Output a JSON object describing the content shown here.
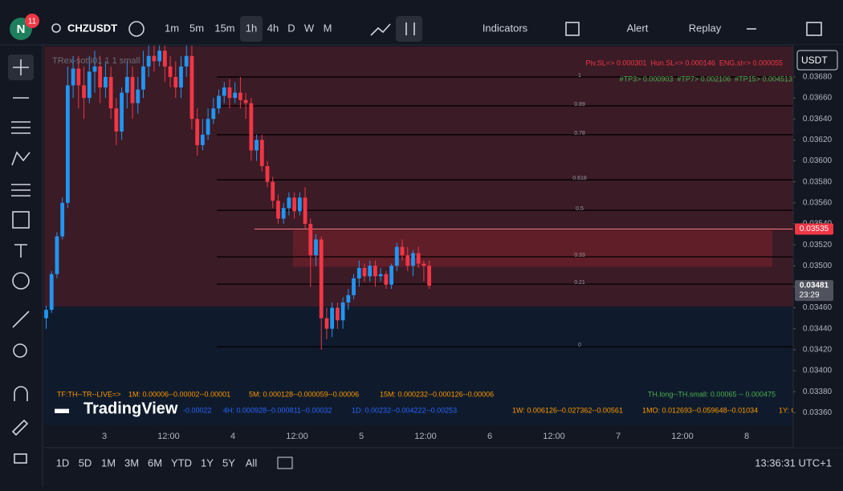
{
  "toolbar": {
    "avatar": "N",
    "badge": "11",
    "symbol": "CHZUSDT",
    "intervals": [
      "1m",
      "5m",
      "15m",
      "1h",
      "4h",
      "D",
      "W",
      "M"
    ],
    "indicators": "Indicators",
    "alert": "Alert",
    "replay": "Replay"
  },
  "chart_data": {
    "type": "candlestick",
    "indicator_title": "TRex-sotti01 1 1 small",
    "currency": "USDT",
    "up_color": "#2196f3",
    "down_color": "#f23645",
    "candles": [
      [
        0.0345,
        0.03462,
        0.0344,
        0.03458
      ],
      [
        0.03458,
        0.03495,
        0.03455,
        0.03492
      ],
      [
        0.03492,
        0.03532,
        0.03488,
        0.03528
      ],
      [
        0.03528,
        0.03565,
        0.03525,
        0.0356
      ],
      [
        0.0356,
        0.0369,
        0.03555,
        0.03672
      ],
      [
        0.03672,
        0.037,
        0.0366,
        0.03688
      ],
      [
        0.03688,
        0.037,
        0.0365,
        0.03672
      ],
      [
        0.03672,
        0.0369,
        0.0364,
        0.0366
      ],
      [
        0.0366,
        0.037,
        0.03655,
        0.03685
      ],
      [
        0.03685,
        0.03705,
        0.03665,
        0.0369
      ],
      [
        0.0369,
        0.037,
        0.03655,
        0.0367
      ],
      [
        0.0367,
        0.03695,
        0.0366,
        0.0368
      ],
      [
        0.0368,
        0.0369,
        0.0364,
        0.0365
      ],
      [
        0.0365,
        0.0366,
        0.03615,
        0.03628
      ],
      [
        0.03628,
        0.0367,
        0.0362,
        0.03665
      ],
      [
        0.03665,
        0.03695,
        0.0365,
        0.0368
      ],
      [
        0.0368,
        0.0369,
        0.0364,
        0.03655
      ],
      [
        0.03655,
        0.0368,
        0.03645,
        0.03668
      ],
      [
        0.03668,
        0.03705,
        0.0366,
        0.0369
      ],
      [
        0.0369,
        0.0371,
        0.0368,
        0.037
      ],
      [
        0.037,
        0.0371,
        0.03685,
        0.03695
      ],
      [
        0.03695,
        0.0371,
        0.0369,
        0.03705
      ],
      [
        0.03705,
        0.0371,
        0.03675,
        0.0369
      ],
      [
        0.0369,
        0.037,
        0.0367,
        0.0368
      ],
      [
        0.0368,
        0.03695,
        0.0366,
        0.0367
      ],
      [
        0.0367,
        0.037,
        0.0366,
        0.0369
      ],
      [
        0.0369,
        0.0371,
        0.0368,
        0.037
      ],
      [
        0.037,
        0.0371,
        0.0363,
        0.0364
      ],
      [
        0.0364,
        0.0365,
        0.03605,
        0.03615
      ],
      [
        0.03615,
        0.0364,
        0.0361,
        0.03625
      ],
      [
        0.03625,
        0.0365,
        0.0362,
        0.0364
      ],
      [
        0.0364,
        0.0366,
        0.03635,
        0.0365
      ],
      [
        0.0365,
        0.03668,
        0.03645,
        0.03662
      ],
      [
        0.03662,
        0.03675,
        0.03655,
        0.0367
      ],
      [
        0.0367,
        0.03678,
        0.0365,
        0.0366
      ],
      [
        0.0366,
        0.03675,
        0.03655,
        0.03665
      ],
      [
        0.03665,
        0.0368,
        0.0365,
        0.03658
      ],
      [
        0.03658,
        0.03665,
        0.0364,
        0.03655
      ],
      [
        0.03655,
        0.0366,
        0.036,
        0.0361
      ],
      [
        0.0361,
        0.03625,
        0.036,
        0.0362
      ],
      [
        0.0362,
        0.03625,
        0.0359,
        0.03595
      ],
      [
        0.03595,
        0.036,
        0.03575,
        0.0358
      ],
      [
        0.0358,
        0.03585,
        0.03555,
        0.03562
      ],
      [
        0.03562,
        0.03568,
        0.0354,
        0.03545
      ],
      [
        0.03545,
        0.0356,
        0.0354,
        0.03555
      ],
      [
        0.03555,
        0.0357,
        0.03548,
        0.03565
      ],
      [
        0.03565,
        0.0357,
        0.03545,
        0.03552
      ],
      [
        0.03552,
        0.0357,
        0.03548,
        0.03565
      ],
      [
        0.03565,
        0.03575,
        0.03535,
        0.0354
      ],
      [
        0.0354,
        0.03545,
        0.0348,
        0.0351
      ],
      [
        0.0351,
        0.0353,
        0.035,
        0.03525
      ],
      [
        0.03525,
        0.03528,
        0.0342,
        0.0345
      ],
      [
        0.0345,
        0.0346,
        0.0343,
        0.0344
      ],
      [
        0.0344,
        0.03465,
        0.03432,
        0.0346
      ],
      [
        0.0346,
        0.03465,
        0.0344,
        0.03448
      ],
      [
        0.03448,
        0.0347,
        0.0344,
        0.03465
      ],
      [
        0.03465,
        0.03478,
        0.03458,
        0.03472
      ],
      [
        0.03472,
        0.03492,
        0.03468,
        0.03488
      ],
      [
        0.03488,
        0.03505,
        0.0348,
        0.03498
      ],
      [
        0.03498,
        0.03502,
        0.03485,
        0.0349
      ],
      [
        0.0349,
        0.03505,
        0.03485,
        0.035
      ],
      [
        0.035,
        0.03505,
        0.0348,
        0.0349
      ],
      [
        0.0349,
        0.03498,
        0.03485,
        0.03492
      ],
      [
        0.03492,
        0.03495,
        0.03478,
        0.03482
      ],
      [
        0.03482,
        0.03502,
        0.03478,
        0.035
      ],
      [
        0.035,
        0.03522,
        0.03495,
        0.03518
      ],
      [
        0.03518,
        0.03525,
        0.03505,
        0.0351
      ],
      [
        0.0351,
        0.03518,
        0.03495,
        0.035
      ],
      [
        0.035,
        0.03515,
        0.0349,
        0.03512
      ],
      [
        0.03512,
        0.03518,
        0.03498,
        0.03502
      ],
      [
        0.03502,
        0.03505,
        0.03485,
        0.035
      ],
      [
        0.035,
        0.03505,
        0.03478,
        0.03481
      ]
    ],
    "ylim": [
      0.03348,
      0.03709
    ],
    "yticks": [
      {
        "value": 0.0368,
        "label": "0.03680"
      },
      {
        "value": 0.0366,
        "label": "0.03660"
      },
      {
        "value": 0.0364,
        "label": "0.03640"
      },
      {
        "value": 0.0362,
        "label": "0.03620"
      },
      {
        "value": 0.036,
        "label": "0.03600"
      },
      {
        "value": 0.0358,
        "label": "0.03580"
      },
      {
        "value": 0.0356,
        "label": "0.03560"
      },
      {
        "value": 0.0354,
        "label": "0.03540"
      },
      {
        "value": 0.0352,
        "label": "0.03520"
      },
      {
        "value": 0.035,
        "label": "0.03500"
      },
      {
        "value": 0.0348,
        "label": "0.03480"
      },
      {
        "value": 0.0346,
        "label": "0.03460"
      },
      {
        "value": 0.0344,
        "label": "0.03440"
      },
      {
        "value": 0.0342,
        "label": "0.03420"
      },
      {
        "value": 0.034,
        "label": "0.03400"
      },
      {
        "value": 0.0338,
        "label": "0.03380"
      },
      {
        "value": 0.0336,
        "label": "0.03360"
      }
    ],
    "xtick_labels": [
      "3",
      "12:00",
      "4",
      "12:00",
      "5",
      "12:00",
      "6",
      "12:00",
      "7",
      "12:00",
      "8"
    ],
    "fib_levels": [
      {
        "label": "1",
        "value": 0.0368
      },
      {
        "label": "0.89",
        "value": 0.036524
      },
      {
        "label": "0.78",
        "value": 0.036249
      },
      {
        "label": "0.618",
        "value": 0.03582
      },
      {
        "label": "0.5",
        "value": 0.035529
      },
      {
        "label": "0.33",
        "value": 0.035085
      },
      {
        "label": "0.21",
        "value": 0.034825
      },
      {
        "label": "0",
        "value": 0.034228
      }
    ],
    "zone_split": 0.03461,
    "box": {
      "low": 0.03499,
      "high": 0.03534
    },
    "price_line": {
      "value": 0.03535,
      "label": "0.03535"
    },
    "last_price": {
      "value": 0.03481,
      "label": "0.03481",
      "countdown": "23:29"
    },
    "annotations": {
      "sl": "Piv.SL=> 0.000301  Hun.SL=> 0.000146  ENG.sl=> 0.000055",
      "tp": "#TP3> 0.000903  #TP7> 0.002106  #TP15> 0.004513",
      "row1": [
        "TF:TH--TR--LIVE=>",
        "1M: 0.00006--0.00002--0.00001",
        "5M: 0.000128--0.000059--0.00006",
        "15M: 0.000232--0.000126--0.00006"
      ],
      "row2": [
        "-0.00022",
        "4H: 0.000928--0.000811--0.00032",
        "1D: 0.00232--0.004222--0.00253"
      ],
      "th": "TH.long--TH.small: 0.00065 -- 0.000475",
      "row2r": [
        "1W: 0.006126--0.027362--0.00561",
        "1MO: 0.012693--0.059648--0.01034",
        "1Y: C"
      ]
    }
  },
  "logo": "TradingView",
  "bottom_bar": {
    "ranges": [
      "1D",
      "5D",
      "1M",
      "3M",
      "6M",
      "YTD",
      "1Y",
      "5Y",
      "All"
    ],
    "clock": "13:36:31 UTC+1"
  }
}
